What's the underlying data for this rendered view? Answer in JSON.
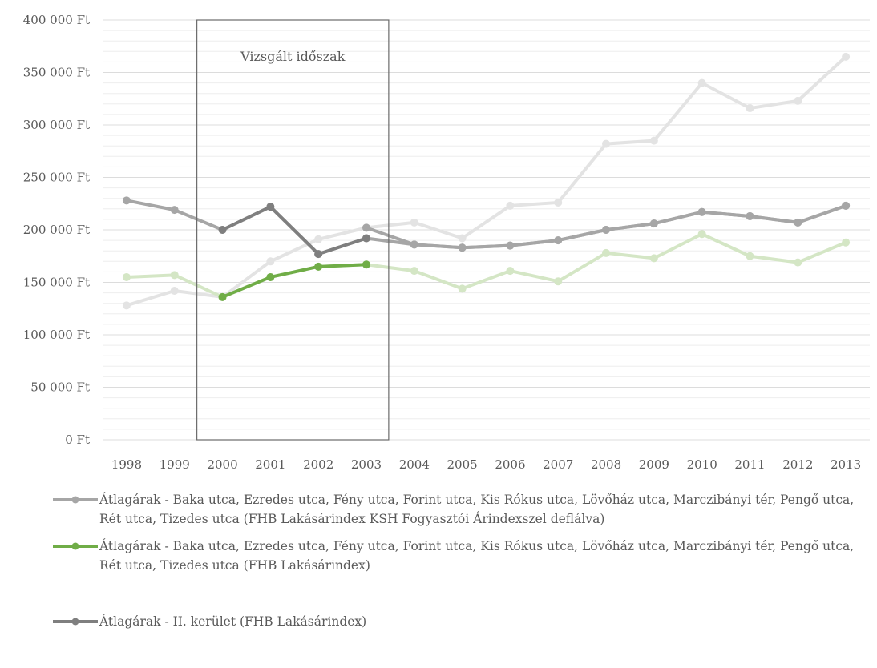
{
  "chart_data": {
    "type": "line",
    "categories": [
      "1998",
      "1999",
      "2000",
      "2001",
      "2002",
      "2003",
      "2004",
      "2005",
      "2006",
      "2007",
      "2008",
      "2009",
      "2010",
      "2011",
      "2012",
      "2013"
    ],
    "y_ticks": [
      "0 Ft",
      "50 000 Ft",
      "100 000 Ft",
      "150 000 Ft",
      "200 000 Ft",
      "250 000 Ft",
      "300 000 Ft",
      "350 000 Ft",
      "400 000 Ft"
    ],
    "ylim": [
      0,
      400000
    ],
    "grid": true,
    "legend_position": "bottom",
    "annotation": {
      "text": "Vizsgált időszak",
      "x_start": "2000",
      "x_end": "2003"
    },
    "series": [
      {
        "name": "Átlagárak - Baka utca, Ezredes utca, Fény utca, Forint utca, Kis Rókus utca, Lövőház utca, Marczibányi tér, Pengő utca, Rét utca, Tizedes utca (FHB Lakásárindex KSH Fogyasztói Árindexszel deflálva)",
        "color": "#a6a6a6",
        "values": [
          null,
          null,
          null,
          null,
          null,
          202000,
          186000,
          183000,
          185000,
          190000,
          200000,
          206000,
          217000,
          213000,
          207000,
          223000
        ]
      },
      {
        "name": "Átlagárak - Baka utca, Ezredes utca, Fény utca, Forint utca, Kis Rókus utca, Lövőház utca, Marczibányi tér, Pengő utca, Rét utca, Tizedes utca (FHB Lakásárindex)",
        "color": "#70ad47",
        "values": [
          null,
          null,
          136000,
          155000,
          165000,
          167000,
          null,
          null,
          null,
          null,
          null,
          null,
          null,
          null,
          null,
          null
        ]
      },
      {
        "name": "Átlagárak - II. kerület (FHB Lakásárindex)",
        "color": "#7f7f7f",
        "values": [
          null,
          null,
          200000,
          222000,
          177000,
          192000,
          null,
          null,
          null,
          null,
          null,
          null,
          null,
          null,
          null,
          null
        ]
      },
      {
        "name": "",
        "color": "#e3e3e3",
        "values": [
          128000,
          142000,
          136000,
          170000,
          191000,
          202000,
          207000,
          192000,
          223000,
          226000,
          282000,
          285000,
          340000,
          316000,
          323000,
          365000
        ]
      },
      {
        "name": "",
        "color": "#d4e6c5",
        "values": [
          155000,
          157000,
          136000,
          155000,
          165000,
          167000,
          161000,
          144000,
          161000,
          151000,
          178000,
          173000,
          196000,
          175000,
          169000,
          188000
        ]
      },
      {
        "name": "",
        "color": "#a6a6a6",
        "values": [
          228000,
          219000,
          200000,
          222000,
          177000,
          192000,
          186000,
          183000,
          185000,
          190000,
          200000,
          206000,
          217000,
          213000,
          207000,
          223000
        ]
      }
    ]
  }
}
